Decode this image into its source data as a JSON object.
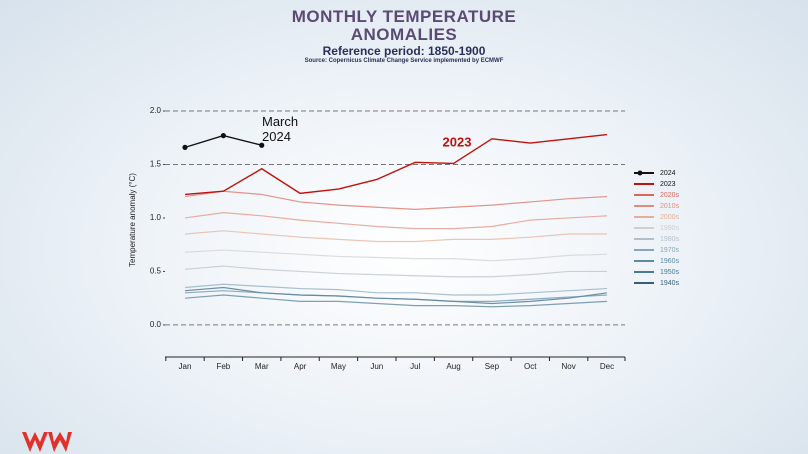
{
  "chart_data": {
    "type": "line",
    "title": "MONTHLY TEMPERATURE ANOMALIES",
    "subtitle": "Reference period: 1850-1900",
    "source": "Source: Copernicus Climate Change Service implemented by ECMWF",
    "y_label": "Temperature anomaly (°C)",
    "annotations": [
      "March 2024",
      "2023"
    ],
    "categories": [
      "Jan",
      "Feb",
      "Mar",
      "Apr",
      "May",
      "Jun",
      "Jul",
      "Aug",
      "Sep",
      "Oct",
      "Nov",
      "Dec"
    ],
    "ylim": [
      -0.3,
      2.0
    ],
    "yticks": [
      {
        "value": 0,
        "label": "0.0"
      },
      0.5,
      {
        "value": 1,
        "label": "1.0"
      },
      1.5,
      {
        "value": 2,
        "label": "2.0"
      }
    ],
    "reference_lines": [
      0,
      1.5,
      2
    ],
    "series": [
      {
        "name": "2024",
        "color": "#111111",
        "values": [
          1.66,
          1.77,
          1.68,
          null,
          null,
          null,
          null,
          null,
          null,
          null,
          null,
          null
        ]
      },
      {
        "name": "2023",
        "color": "#c0120c",
        "values": [
          1.22,
          1.25,
          1.46,
          1.23,
          1.27,
          1.36,
          1.52,
          1.51,
          1.74,
          1.7,
          1.74,
          1.78
        ]
      },
      {
        "name": "2020s",
        "color": "#d9675a",
        "values": [
          1.2,
          1.25,
          1.22,
          1.15,
          1.12,
          1.1,
          1.08,
          1.1,
          1.12,
          1.15,
          1.18,
          1.2
        ]
      },
      {
        "name": "2010s",
        "color": "#df8c7c",
        "values": [
          1.0,
          1.05,
          1.02,
          0.98,
          0.95,
          0.92,
          0.9,
          0.9,
          0.92,
          0.98,
          1.0,
          1.02
        ]
      },
      {
        "name": "2000s",
        "color": "#e6ae96",
        "values": [
          0.85,
          0.88,
          0.85,
          0.82,
          0.8,
          0.78,
          0.78,
          0.8,
          0.8,
          0.82,
          0.85,
          0.85
        ]
      },
      {
        "name": "1990s",
        "color": "#cfcfcf",
        "values": [
          0.68,
          0.7,
          0.68,
          0.66,
          0.64,
          0.63,
          0.62,
          0.62,
          0.6,
          0.62,
          0.65,
          0.66
        ]
      },
      {
        "name": "1980s",
        "color": "#b4c0c9",
        "values": [
          0.52,
          0.55,
          0.52,
          0.5,
          0.48,
          0.47,
          0.46,
          0.45,
          0.45,
          0.47,
          0.5,
          0.5
        ]
      },
      {
        "name": "1970s",
        "color": "#86a7ba",
        "values": [
          0.35,
          0.38,
          0.36,
          0.34,
          0.33,
          0.3,
          0.3,
          0.28,
          0.28,
          0.3,
          0.32,
          0.34
        ]
      },
      {
        "name": "1960s",
        "color": "#5d8ba5",
        "values": [
          0.3,
          0.32,
          0.3,
          0.28,
          0.27,
          0.25,
          0.24,
          0.22,
          0.22,
          0.24,
          0.26,
          0.28
        ]
      },
      {
        "name": "1950s",
        "color": "#4a7995",
        "values": [
          0.25,
          0.28,
          0.25,
          0.22,
          0.22,
          0.2,
          0.18,
          0.18,
          0.17,
          0.18,
          0.2,
          0.22
        ]
      },
      {
        "name": "1940s",
        "color": "#395f7c",
        "values": [
          0.32,
          0.35,
          0.3,
          0.28,
          0.27,
          0.25,
          0.24,
          0.22,
          0.2,
          0.22,
          0.25,
          0.3
        ]
      }
    ]
  }
}
